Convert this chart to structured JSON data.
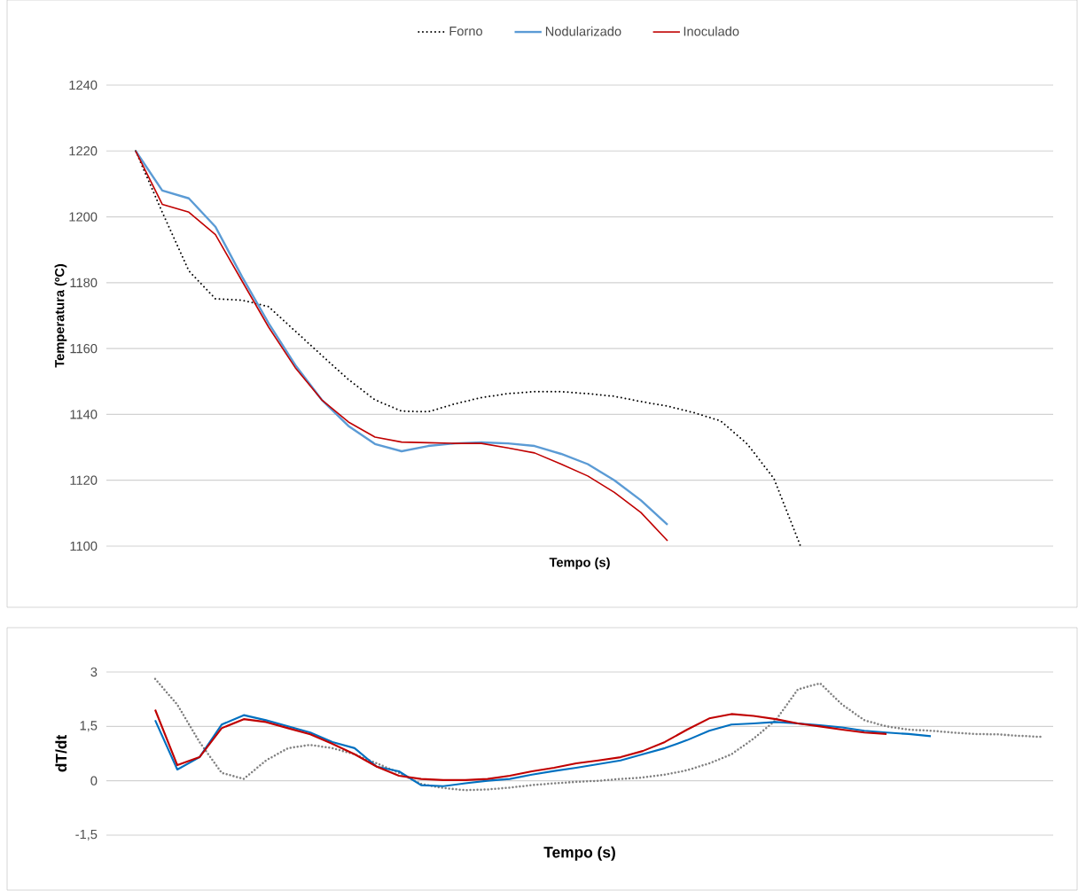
{
  "chart_data": [
    {
      "type": "line",
      "xlabel": "Tempo (s)",
      "ylabel": "Temperatura (ºC)",
      "categories": [
        null,
        null,
        null,
        null,
        null,
        null,
        null,
        null,
        null,
        null,
        null,
        null,
        null,
        null,
        null,
        null,
        null,
        null,
        null,
        null,
        null,
        null,
        null,
        null,
        null,
        null,
        null,
        null,
        null,
        null,
        null,
        null,
        null,
        null,
        null
      ],
      "series": [
        {
          "name": "Forno",
          "color": "#000000",
          "line_style": "dotted",
          "values": [
            1220,
            1201.4,
            1183.6,
            1175.1,
            1174.7,
            1172.7,
            1165.3,
            1157.9,
            1150.6,
            1144.4,
            1141,
            1140.8,
            1143.2,
            1145.1,
            1146.3,
            1146.9,
            1146.9,
            1146.3,
            1145.5,
            1143.9,
            1142.5,
            1140.5,
            1138,
            1131,
            1120.5,
            1100,
            null,
            null,
            null,
            null,
            null,
            null,
            null,
            null,
            null
          ]
        },
        {
          "name": "Nodularizado",
          "color": "#5b9bd5",
          "line_style": "solid",
          "values": [
            1220,
            1208,
            1205.6,
            1197,
            1181.8,
            1167.7,
            1155,
            1144.4,
            1136.5,
            1131,
            1128.8,
            1130.4,
            1131.2,
            1131.5,
            1131.2,
            1130.4,
            1128,
            1124.9,
            1120,
            1113.9,
            1106.5,
            null,
            null,
            null,
            null,
            null,
            null,
            null,
            null,
            null,
            null,
            null,
            null,
            null,
            null
          ]
        },
        {
          "name": "Inoculado",
          "color": "#c00000",
          "line_style": "solid",
          "values": [
            1220,
            1203.8,
            1201.4,
            1194.6,
            1180.5,
            1166.5,
            1154.2,
            1144.4,
            1137.7,
            1133.1,
            1131.6,
            1131.4,
            1131.2,
            1131.2,
            1129.8,
            1128.3,
            1124.9,
            1121.3,
            1116.3,
            1110.2,
            1101.6,
            null,
            null,
            null,
            null,
            null,
            null,
            null,
            null,
            null,
            null,
            null,
            null,
            null,
            null
          ]
        }
      ],
      "ylim": [
        1100,
        1240
      ],
      "yticks": [
        1100,
        1120,
        1140,
        1160,
        1180,
        1200,
        1220,
        1240
      ],
      "grid": "y",
      "legend": "top",
      "tick_labels": "y"
    },
    {
      "type": "line",
      "xlabel": "Tempo (s)",
      "ylabel": "dT/dt",
      "categories": [
        null,
        null,
        null,
        null,
        null,
        null,
        null,
        null,
        null,
        null,
        null,
        null,
        null,
        null,
        null,
        null,
        null,
        null,
        null,
        null,
        null,
        null,
        null,
        null,
        null,
        null,
        null,
        null,
        null,
        null,
        null,
        null,
        null,
        null,
        null,
        null,
        null,
        null,
        null,
        null,
        null
      ],
      "series": [
        {
          "color": "#808080",
          "line_style": "dotted",
          "values": [
            2.81,
            2.1,
            1.07,
            0.22,
            0.05,
            0.56,
            0.9,
            0.99,
            0.9,
            0.73,
            0.48,
            0.22,
            -0.09,
            -0.2,
            -0.26,
            -0.24,
            -0.19,
            -0.12,
            -0.07,
            -0.03,
            0,
            0.05,
            0.09,
            0.17,
            0.29,
            0.48,
            0.73,
            1.16,
            1.67,
            2.52,
            2.69,
            2.1,
            1.67,
            1.5,
            1.41,
            1.38,
            1.33,
            1.29,
            1.28,
            1.24,
            1.21
          ]
        },
        {
          "color": "#0070c0",
          "line_style": "solid",
          "values": [
            1.67,
            0.31,
            0.65,
            1.55,
            1.81,
            1.67,
            1.5,
            1.33,
            1.07,
            0.9,
            0.39,
            0.26,
            -0.12,
            -0.15,
            -0.07,
            0,
            0.05,
            0.17,
            0.27,
            0.36,
            0.46,
            0.56,
            0.73,
            0.9,
            1.12,
            1.38,
            1.55,
            1.58,
            1.62,
            1.58,
            1.53,
            1.47,
            1.38,
            1.33,
            1.29,
            1.23,
            null,
            null,
            null,
            null,
            null
          ]
        },
        {
          "color": "#c00000",
          "line_style": "solid",
          "values": [
            1.96,
            0.43,
            0.65,
            1.45,
            1.7,
            1.62,
            1.45,
            1.28,
            1.02,
            0.73,
            0.39,
            0.14,
            0.05,
            0.02,
            0.02,
            0.05,
            0.14,
            0.26,
            0.36,
            0.48,
            0.56,
            0.65,
            0.82,
            1.07,
            1.41,
            1.72,
            1.84,
            1.79,
            1.7,
            1.58,
            1.5,
            1.41,
            1.33,
            1.29,
            null,
            null,
            null,
            null,
            null,
            null,
            null
          ]
        }
      ],
      "ylim": [
        -1.5,
        3
      ],
      "yticks": [
        {
          "value": -1.5,
          "label": "-1,5"
        },
        0,
        {
          "value": 1.5,
          "label": "1,5"
        },
        3
      ],
      "grid": "y",
      "tick_labels": "y"
    }
  ]
}
